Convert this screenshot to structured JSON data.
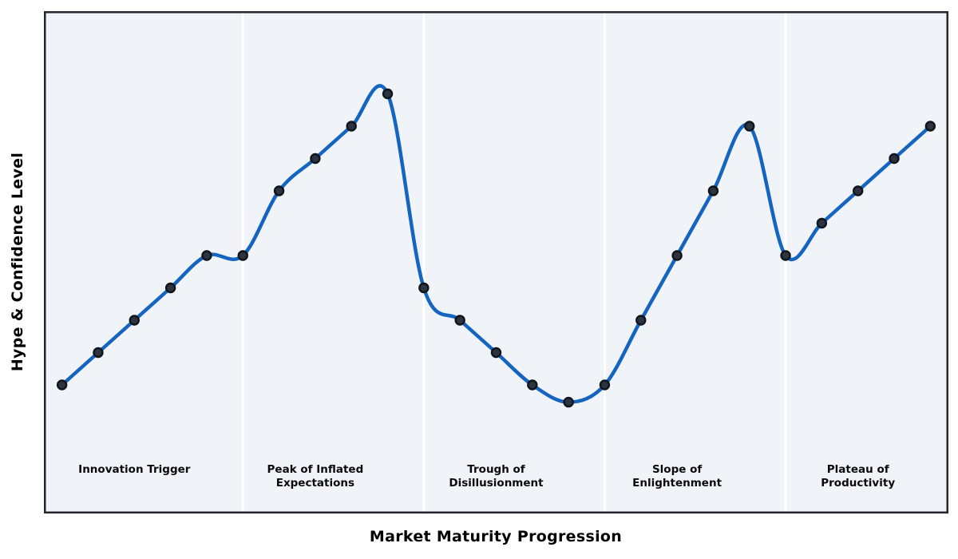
{
  "chart_data": {
    "type": "line",
    "title": "",
    "xlabel": "Market Maturity Progression",
    "ylabel": "Hype & Confidence Level",
    "curve_style": "smooth-spline",
    "marker": "circle",
    "grid": false,
    "legend": null,
    "x": [
      1,
      2,
      3,
      4,
      5,
      6,
      7,
      8,
      9,
      10,
      11,
      12,
      13,
      14,
      15,
      16,
      17,
      18,
      19,
      20,
      21,
      22,
      23,
      24,
      25
    ],
    "values": [
      20,
      27.5,
      35,
      42.5,
      50,
      50,
      65,
      72.5,
      80,
      87.5,
      42.5,
      35,
      27.5,
      20,
      16,
      20,
      35,
      50,
      65,
      80,
      50,
      57.5,
      65,
      72.5,
      80
    ],
    "xlim": [
      0.5,
      25.5
    ],
    "ylim": [
      -10,
      107
    ],
    "phase_boundaries_x": [
      6,
      11,
      16,
      21
    ],
    "phases": [
      {
        "label": "Innovation Trigger",
        "center_x": 3
      },
      {
        "label": "Peak of Inflated\nExpectations",
        "center_x": 8
      },
      {
        "label": "Trough of\nDisillusionment",
        "center_x": 13
      },
      {
        "label": "Slope of\nEnlightenment",
        "center_x": 18
      },
      {
        "label": "Plateau of\nProductivity",
        "center_x": 23
      }
    ],
    "colors": {
      "line": "#1565c0",
      "marker_fill": "#2b3440",
      "marker_edge": "#10151c",
      "band_bg": "#f0f4f8",
      "separator": "#ffffff",
      "frame": "#23272e",
      "text": "#000000"
    }
  }
}
